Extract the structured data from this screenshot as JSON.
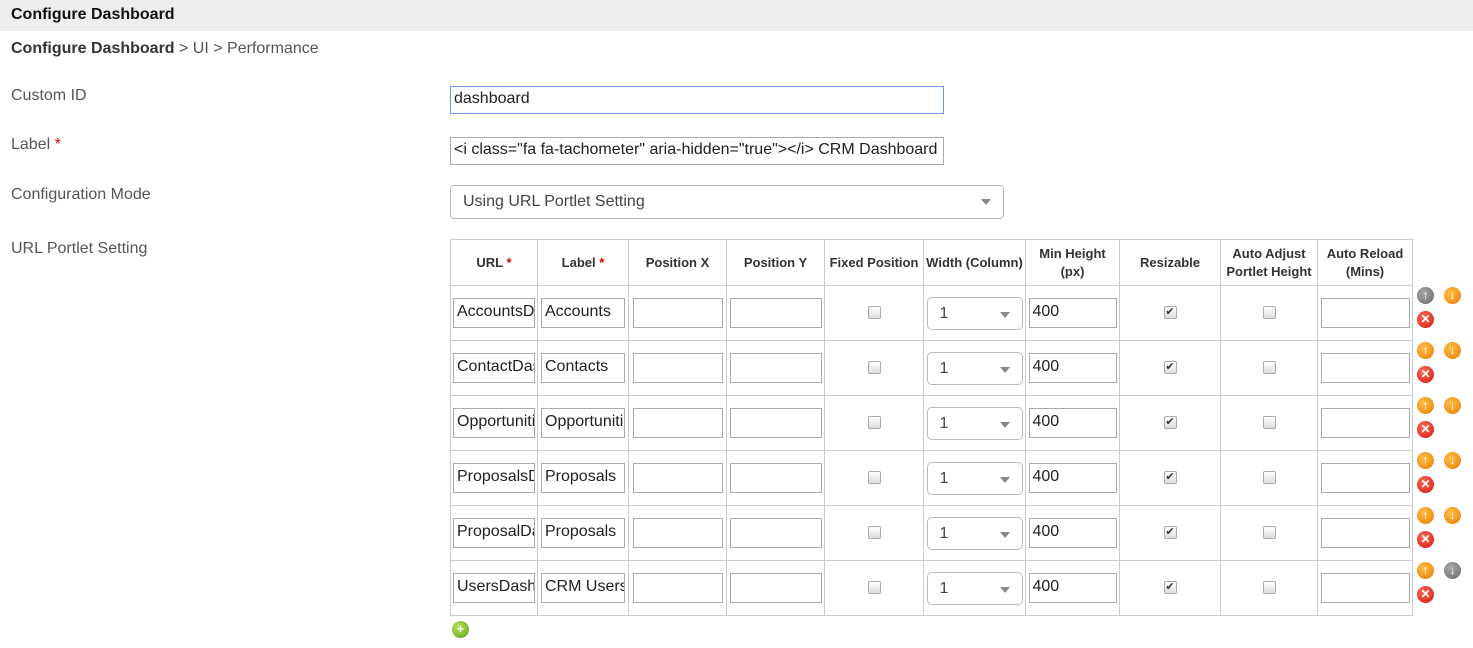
{
  "header": {
    "title": "Configure Dashboard"
  },
  "breadcrumb": {
    "root": "Configure Dashboard",
    "rest": " > UI > Performance"
  },
  "form": {
    "custom_id": {
      "label": "Custom ID",
      "value": "dashboard"
    },
    "label": {
      "label": "Label",
      "required": "*",
      "value": "<i class=\"fa fa-tachometer\" aria-hidden=\"true\"></i> CRM Dashboard"
    },
    "config_mode": {
      "label": "Configuration Mode",
      "value": "Using URL Portlet Setting"
    },
    "url_portlet": {
      "label": "URL Portlet Setting"
    }
  },
  "table": {
    "headers": [
      "URL",
      "Label",
      "Position X",
      "Position Y",
      "Fixed Position",
      "Width (Column)",
      "Min Height (px)",
      "Resizable",
      "Auto Adjust Portlet Height",
      "Auto Reload (Mins)"
    ],
    "required_mark": "*",
    "rows": [
      {
        "url": "AccountsDashboard",
        "label": "Accounts",
        "x": "",
        "y": "",
        "fixed": false,
        "width": "1",
        "min_height": "400",
        "resizable": true,
        "auto_adjust": false,
        "reload": "",
        "up_enabled": false,
        "down_enabled": true
      },
      {
        "url": "ContactDashboard",
        "label": "Contacts",
        "x": "",
        "y": "",
        "fixed": false,
        "width": "1",
        "min_height": "400",
        "resizable": true,
        "auto_adjust": false,
        "reload": "",
        "up_enabled": true,
        "down_enabled": true
      },
      {
        "url": "OpportunitiesDashboard",
        "label": "Opportunities",
        "x": "",
        "y": "",
        "fixed": false,
        "width": "1",
        "min_height": "400",
        "resizable": true,
        "auto_adjust": false,
        "reload": "",
        "up_enabled": true,
        "down_enabled": true
      },
      {
        "url": "ProposalsDashboard",
        "label": "Proposals",
        "x": "",
        "y": "",
        "fixed": false,
        "width": "1",
        "min_height": "400",
        "resizable": true,
        "auto_adjust": false,
        "reload": "",
        "up_enabled": true,
        "down_enabled": true
      },
      {
        "url": "ProposalDashboard",
        "label": "Proposals",
        "x": "",
        "y": "",
        "fixed": false,
        "width": "1",
        "min_height": "400",
        "resizable": true,
        "auto_adjust": false,
        "reload": "",
        "up_enabled": true,
        "down_enabled": true
      },
      {
        "url": "UsersDashboard",
        "label": "CRM Users",
        "x": "",
        "y": "",
        "fixed": false,
        "width": "1",
        "min_height": "400",
        "resizable": true,
        "auto_adjust": false,
        "reload": "",
        "up_enabled": true,
        "down_enabled": false
      }
    ]
  },
  "colors": {
    "required": "#dd0000",
    "icon_orange": "#e87a00",
    "icon_gray": "#777777",
    "icon_red": "#d1160a",
    "icon_green": "#5c9e10"
  }
}
